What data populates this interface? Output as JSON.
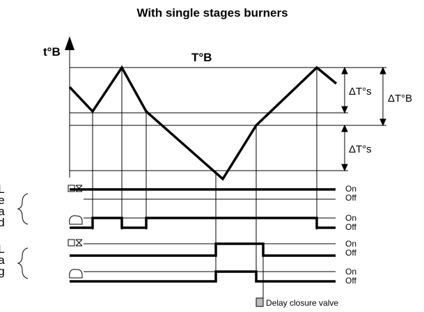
{
  "title": "With single stages burners",
  "y_axis_label": "t°B",
  "curve_label": "T°B",
  "dimensions": [
    {
      "label": "ΔT°s"
    },
    {
      "label": "ΔT°B"
    },
    {
      "label": "ΔT°s"
    }
  ],
  "groups": [
    {
      "label": "Lead",
      "rows": [
        {
          "on": "On",
          "off": "Off"
        },
        {
          "on": "On",
          "off": "Off"
        }
      ]
    },
    {
      "label": "Lag",
      "rows": [
        {
          "on": "On",
          "off": "Off"
        },
        {
          "on": "On",
          "off": "Off"
        }
      ]
    }
  ],
  "legend": "Delay closure valve"
}
